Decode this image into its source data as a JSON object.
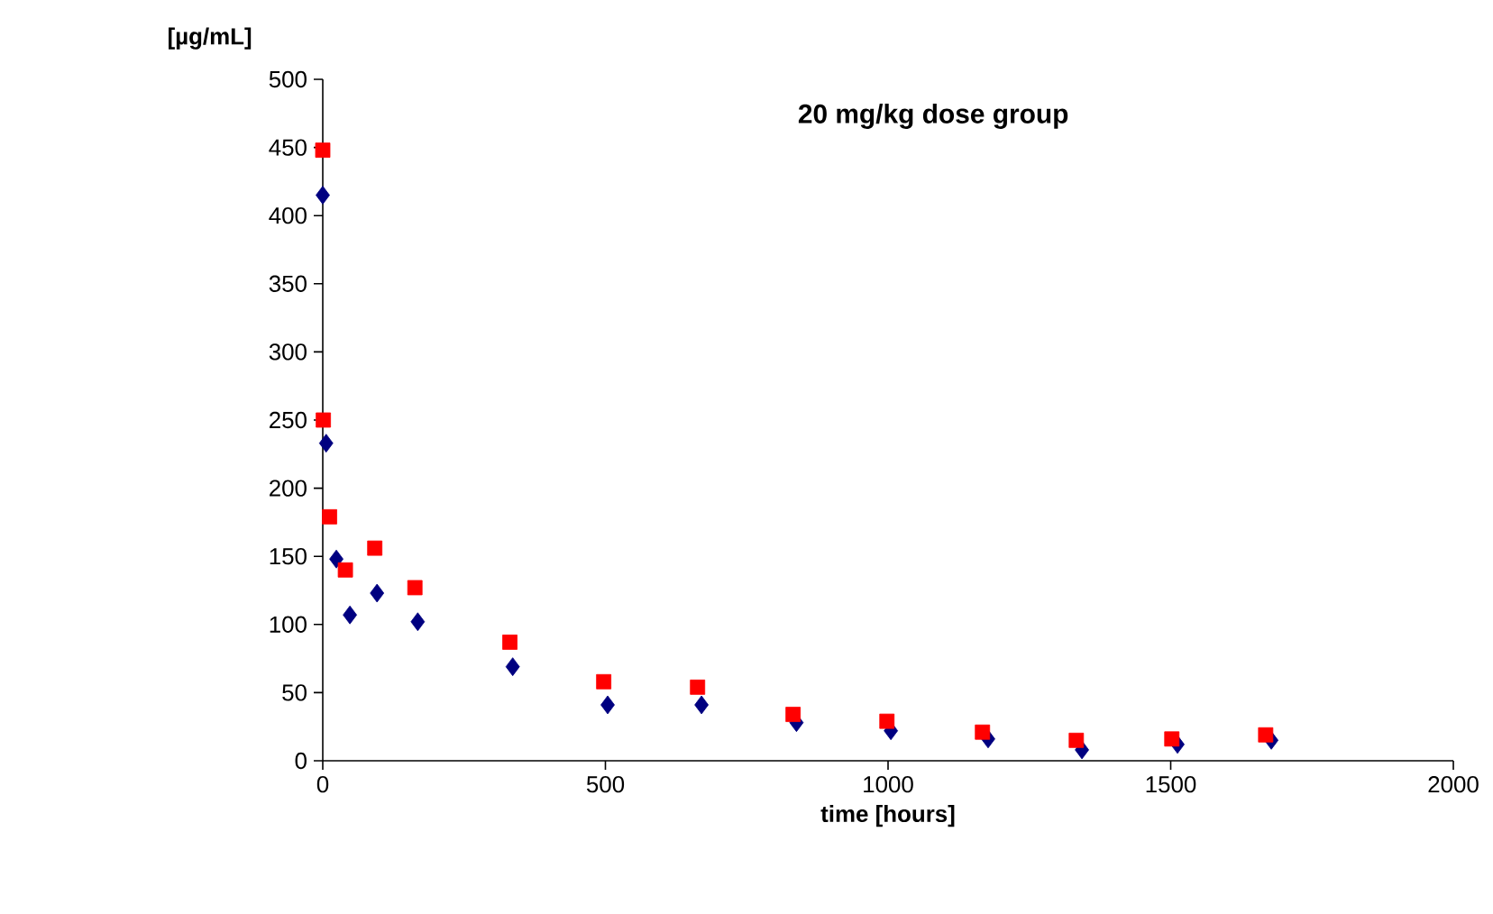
{
  "chart_data": {
    "type": "scatter",
    "title": "20 mg/kg dose group",
    "xlabel": "time [hours]",
    "ylabel": "[µg/mL]",
    "xlim": [
      0,
      2000
    ],
    "xticks": [
      0,
      500,
      1000,
      1500,
      2000
    ],
    "ylim": [
      0,
      500
    ],
    "yticks": [
      0,
      50,
      100,
      150,
      200,
      250,
      300,
      350,
      400,
      450,
      500
    ],
    "grid": false,
    "series": [
      {
        "color": "#000080",
        "marker": "diamond",
        "x": [
          0,
          6,
          24,
          48,
          96,
          168,
          336,
          504,
          670,
          838,
          1005,
          1177,
          1343,
          1512,
          1678
        ],
        "values": [
          415,
          233,
          148,
          107,
          123,
          102,
          69,
          41,
          41,
          28,
          22,
          16,
          8,
          12,
          15
        ]
      },
      {
        "color": "#ff0000",
        "marker": "square",
        "x": [
          0,
          1,
          12,
          40,
          92,
          163,
          331,
          497,
          663,
          832,
          998,
          1167,
          1333,
          1502,
          1668
        ],
        "values": [
          448,
          250,
          179,
          140,
          156,
          127,
          87,
          58,
          54,
          34,
          29,
          21,
          15,
          16,
          19
        ]
      }
    ]
  }
}
